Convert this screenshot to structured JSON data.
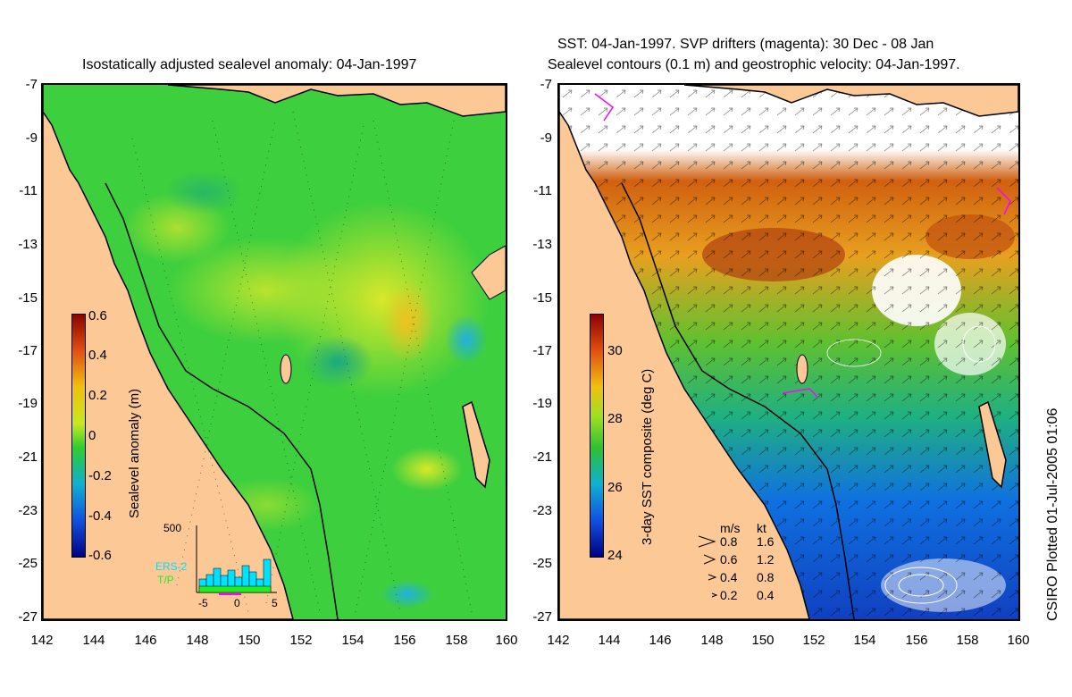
{
  "left": {
    "title": "Isostatically adjusted sealevel anomaly: 04-Jan-1997",
    "colorbar": {
      "label": "Sealevel anomaly (m)",
      "ticks": [
        "0.6",
        "0.4",
        "0.2",
        "0",
        "-0.2",
        "-0.4",
        "-0.6"
      ]
    },
    "inset": {
      "ymax": "500",
      "series": [
        "ERS-2",
        "T/P"
      ],
      "series_colors": [
        "#00e0ff",
        "#22ee22"
      ],
      "xticks": [
        "-5",
        "0",
        "5"
      ]
    }
  },
  "right": {
    "title_line1": "SST: 04-Jan-1997. SVP drifters (magenta): 30 Dec - 08 Jan",
    "title_line2": "Sealevel contours (0.1 m) and geostrophic velocity: 04-Jan-1997.",
    "colorbar": {
      "label": "3-day SST composite (deg C)",
      "ticks": [
        "30",
        "28",
        "26",
        "24"
      ]
    },
    "velocity_legend": {
      "header_ms": "m/s",
      "header_kt": "kt",
      "rows": [
        {
          "ms": "0.8",
          "kt": "1.6"
        },
        {
          "ms": "0.6",
          "kt": "1.2"
        },
        {
          "ms": "0.4",
          "kt": "0.8"
        },
        {
          "ms": "0.2",
          "kt": "0.4"
        }
      ]
    }
  },
  "axes": {
    "yticks": [
      "-7",
      "-9",
      "-11",
      "-13",
      "-15",
      "-17",
      "-19",
      "-21",
      "-23",
      "-25",
      "-27"
    ],
    "xticks": [
      "142",
      "144",
      "146",
      "148",
      "150",
      "152",
      "154",
      "156",
      "158",
      "160"
    ]
  },
  "credit": "CSIRO Plotted 01-Jul-2005 01:06",
  "colors": {
    "land": "#fbc896",
    "ocean_green": "#3ecf3e",
    "drifter_magenta": "#ff00ff"
  }
}
